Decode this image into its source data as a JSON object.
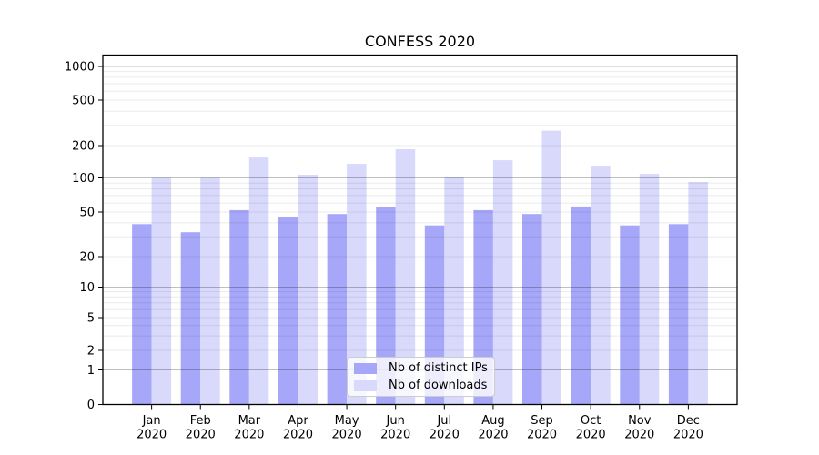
{
  "title": "CONFESS 2020",
  "chart_data": {
    "type": "bar",
    "title": "CONFESS 2020",
    "categories": [
      "Jan",
      "Feb",
      "Mar",
      "Apr",
      "May",
      "Jun",
      "Jul",
      "Aug",
      "Sep",
      "Oct",
      "Nov",
      "Dec"
    ],
    "x_tick_year": "2020",
    "series": [
      {
        "name": "Nb of distinct IPs",
        "color": "#a6a7f8",
        "values": [
          39,
          33,
          52,
          45,
          48,
          55,
          38,
          52,
          48,
          56,
          38,
          39
        ]
      },
      {
        "name": "Nb of downloads",
        "color": "#d8d9fb",
        "values": [
          100,
          100,
          155,
          107,
          135,
          185,
          102,
          146,
          270,
          130,
          109,
          92
        ]
      }
    ],
    "y_axis": {
      "scale": "symlog",
      "tick_values": [
        0,
        1,
        2,
        5,
        10,
        20,
        50,
        100,
        200,
        500,
        1000
      ],
      "tick_labels": [
        "0",
        "1",
        "2",
        "5",
        "10",
        "20",
        "50",
        "100",
        "200",
        "500",
        "1000"
      ],
      "ylim": [
        0,
        1400
      ]
    },
    "grid": true,
    "legend_position": "lower center"
  }
}
